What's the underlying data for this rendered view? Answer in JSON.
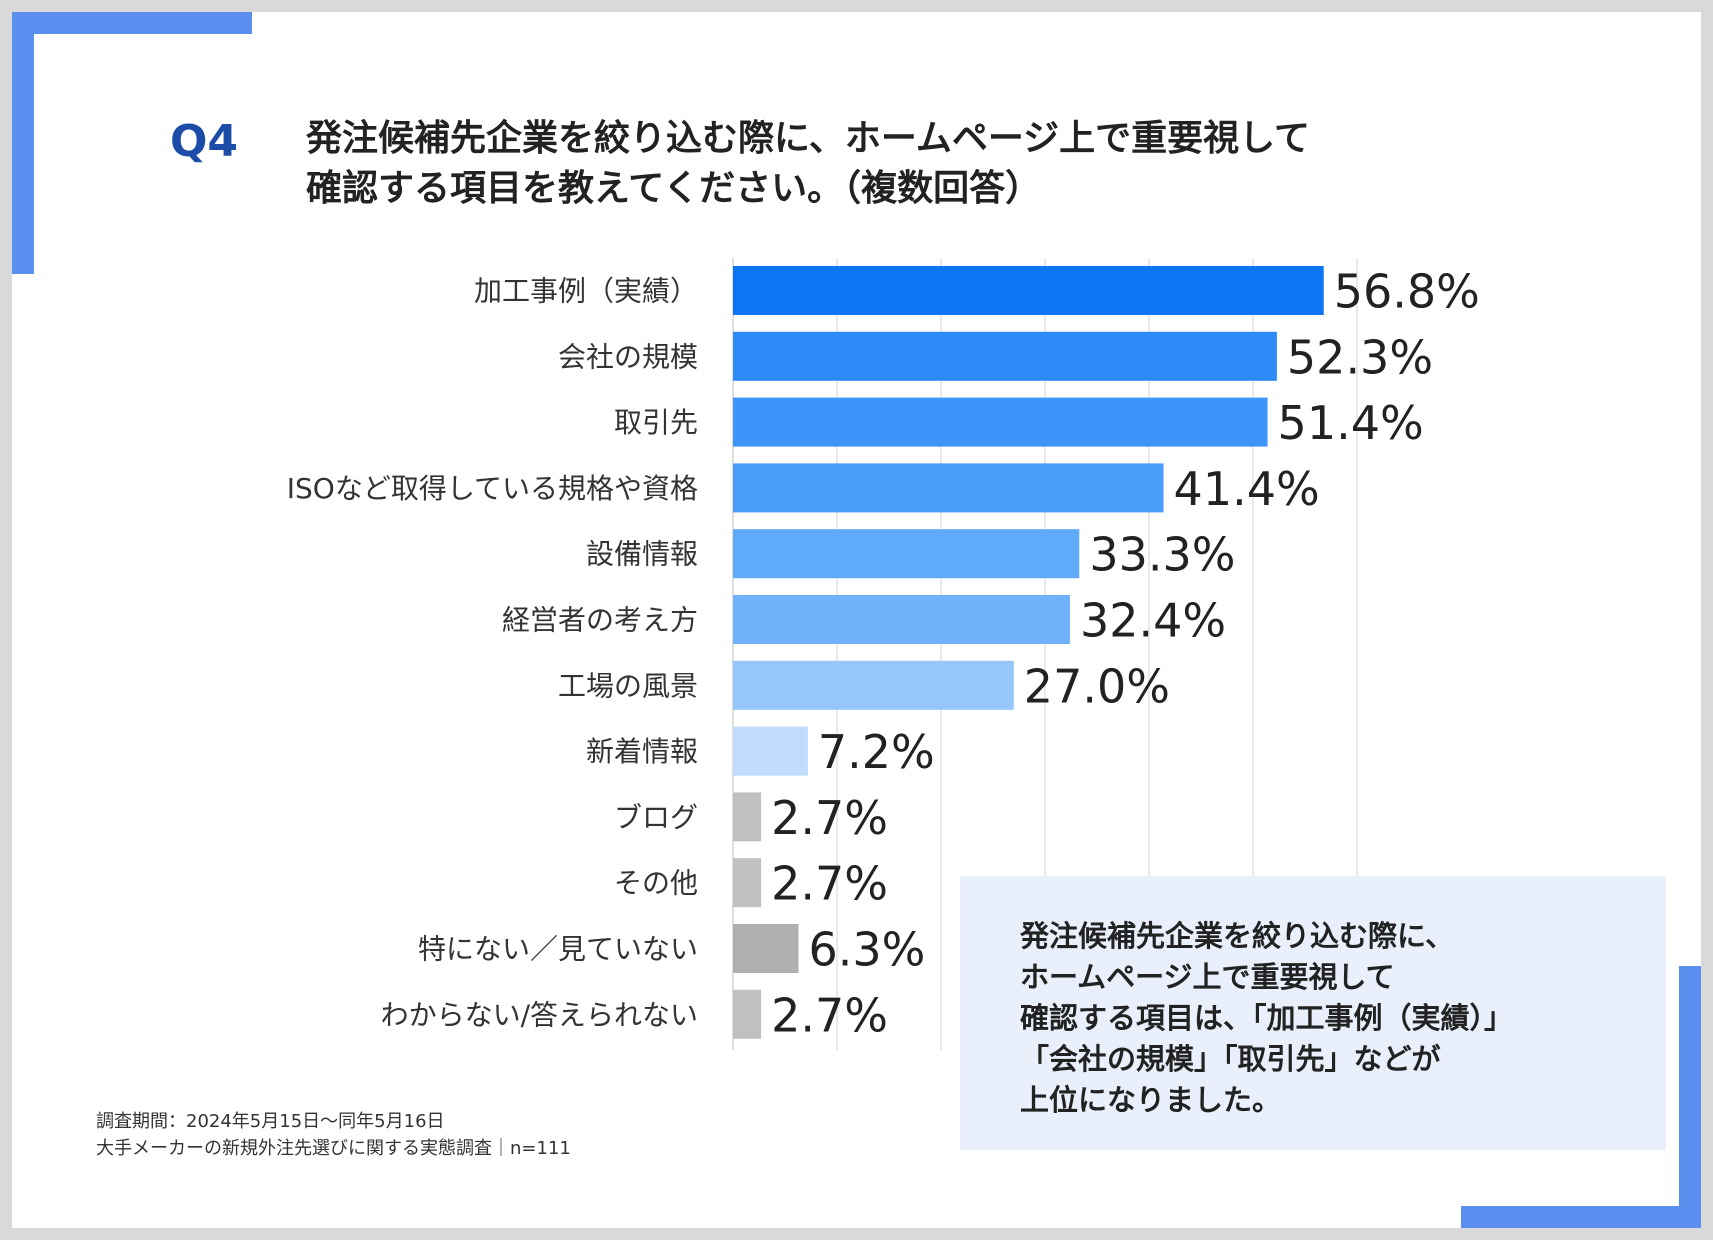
{
  "question": {
    "label": "Q4",
    "title_line1": "発注候補先企業を絞り込む際に、ホームページ上で重要視して",
    "title_line2": "確認する項目を教えてください。（複数回答）"
  },
  "colors": {
    "accent": "#5b8ff0",
    "question_label": "#1a4ca8",
    "bar_gray": "#c0c0c0",
    "bar_gray_dark": "#b0b0b0"
  },
  "chart_data": {
    "type": "bar",
    "orientation": "horizontal",
    "categories": [
      "加工事例（実績）",
      "会社の規模",
      "取引先",
      "ISOなど取得している規格や資格",
      "設備情報",
      "経営者の考え方",
      "工場の風景",
      "新着情報",
      "ブログ",
      "その他",
      "特にない／見ていない",
      "わからない/答えられない"
    ],
    "values": [
      56.8,
      52.3,
      51.4,
      41.4,
      33.3,
      32.4,
      27.0,
      7.2,
      2.7,
      2.7,
      6.3,
      2.7
    ],
    "value_labels": [
      "56.8%",
      "52.3%",
      "51.4%",
      "41.4%",
      "33.3%",
      "32.4%",
      "27.0%",
      "7.2%",
      "2.7%",
      "2.7%",
      "6.3%",
      "2.7%"
    ],
    "bar_colors": [
      "#0a76f6",
      "#2d8bf8",
      "#3d95f9",
      "#4a9cf9",
      "#60aafa",
      "#6fb2fb",
      "#96c6fc",
      "#c0dcfd",
      "#c0c0c0",
      "#c0c0c0",
      "#b0b0b0",
      "#c0c0c0"
    ],
    "xlim": [
      0,
      60
    ],
    "grid": true,
    "gridline_values": [
      0,
      10,
      20,
      30,
      40,
      50,
      60
    ]
  },
  "summary": {
    "line1": "発注候補先企業を絞り込む際に、",
    "line2": "ホームページ上で重要視して",
    "line3": "確認する項目は、「加工事例（実績）」",
    "line4": "「会社の規模」「取引先」などが",
    "line5": "上位になりました。"
  },
  "footnote": {
    "line1": "調査期間：2024年5月15日～同年5月16日",
    "line2": "大手メーカーの新規外注先選びに関する実態調査｜n=111"
  }
}
